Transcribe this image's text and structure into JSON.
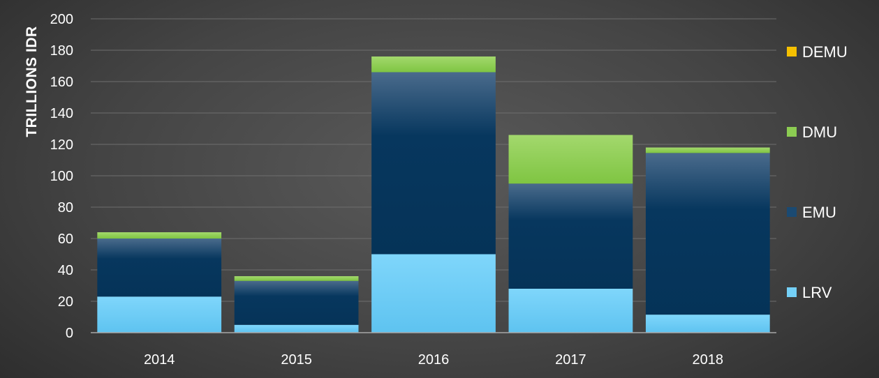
{
  "chart_data": {
    "type": "bar",
    "stacked": true,
    "title": "",
    "xlabel": "",
    "ylabel": "TRILLIONS IDR",
    "ylim": [
      0,
      200
    ],
    "yticks": [
      0,
      20,
      40,
      60,
      80,
      100,
      120,
      140,
      160,
      180,
      200
    ],
    "categories": [
      "2014",
      "2015",
      "2016",
      "2017",
      "2018"
    ],
    "series": [
      {
        "name": "LRV",
        "color": "#74d0f7",
        "values": [
          23,
          5,
          50,
          28,
          11.5
        ]
      },
      {
        "name": "EMU",
        "color": "#1b4a72",
        "values": [
          37,
          28,
          116,
          67,
          103
        ]
      },
      {
        "name": "DMU",
        "color": "#8ccc52",
        "values": [
          4,
          3,
          10,
          31,
          3.5
        ]
      },
      {
        "name": "DEMU",
        "color": "#f5c000",
        "values": [
          0,
          0,
          0,
          0,
          0
        ]
      }
    ],
    "grid": true,
    "legend_position": "right"
  }
}
